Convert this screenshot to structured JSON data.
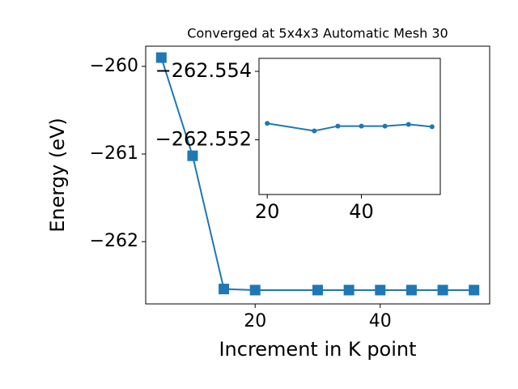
{
  "chart_data": [
    {
      "type": "line",
      "title": "Converged at 5x4x3 Automatic Mesh 30",
      "xlabel": "Increment in K point",
      "ylabel": "Energy (eV)",
      "x": [
        5,
        10,
        15,
        20,
        30,
        35,
        40,
        45,
        50,
        55
      ],
      "series": [
        {
          "color": "#1f77b4",
          "marker": "square",
          "values": [
            -259.9,
            -261.02,
            -262.54,
            -262.5525,
            -262.5523,
            -262.5524,
            -262.5524,
            -262.5524,
            -262.5524,
            -262.5524
          ]
        }
      ],
      "xlim": [
        2.5,
        57.5
      ],
      "ylim": [
        -262.71,
        -259.77
      ],
      "xticks": [
        20,
        40
      ],
      "yticks": [
        {
          "value": -260,
          "label": "−260"
        },
        {
          "value": -261,
          "label": "−261"
        },
        {
          "value": -262,
          "label": "−262"
        }
      ]
    },
    {
      "type": "line",
      "x": [
        20,
        30,
        35,
        40,
        45,
        50,
        55
      ],
      "series": [
        {
          "color": "#1f77b4",
          "marker": "circle",
          "values": [
            -262.55248,
            -262.55226,
            -262.5524,
            -262.5524,
            -262.5524,
            -262.55245,
            -262.55238
          ]
        }
      ],
      "xlim": [
        18.25,
        56.75
      ],
      "ylim": [
        -262.5504,
        -262.55438
      ],
      "xticks": [
        20,
        40
      ],
      "yticks": [
        {
          "value": -262.554,
          "label": "−262.554"
        },
        {
          "value": -262.552,
          "label": "−262.552"
        }
      ]
    }
  ]
}
